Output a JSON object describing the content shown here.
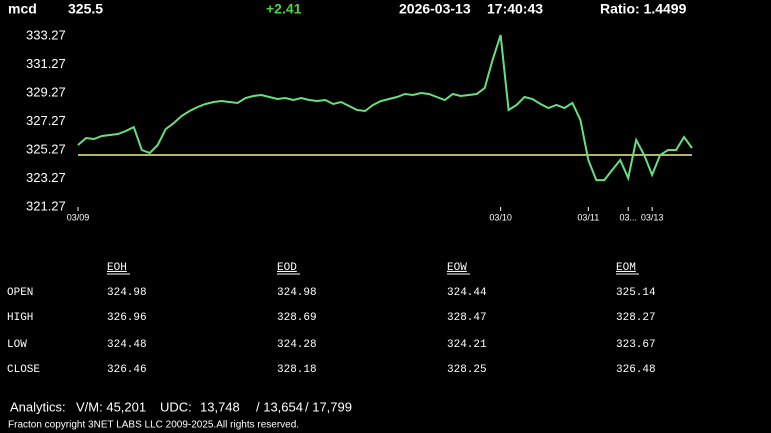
{
  "header": {
    "symbol": "mcd",
    "price": 325.5,
    "change": "+2.41",
    "date": "2026-03-13",
    "time": "17:40:43",
    "ratio": "Ratio: 1.4499"
  },
  "chart_data": {
    "type": "line",
    "categories": [
      "03/09",
      null,
      null,
      null,
      null,
      null,
      null,
      null,
      null,
      null,
      null,
      null,
      null,
      null,
      null,
      null,
      null,
      null,
      null,
      null,
      null,
      null,
      null,
      null,
      null,
      null,
      null,
      null,
      null,
      null,
      null,
      null,
      null,
      null,
      null,
      null,
      null,
      null,
      null,
      null,
      null,
      null,
      null,
      null,
      null,
      null,
      null,
      null,
      null,
      null,
      null,
      null,
      null,
      "03/10",
      null,
      null,
      null,
      null,
      null,
      null,
      null,
      null,
      null,
      null,
      "03/11",
      null,
      null,
      null,
      null,
      "03...",
      null,
      null,
      "03/13",
      null,
      null,
      null,
      null,
      null
    ],
    "values": [
      325.62,
      326.11,
      326.04,
      326.25,
      326.32,
      326.39,
      326.6,
      326.88,
      325.27,
      325.06,
      325.62,
      326.74,
      327.16,
      327.66,
      328.01,
      328.29,
      328.5,
      328.64,
      328.71,
      328.64,
      328.57,
      328.92,
      329.06,
      329.13,
      328.99,
      328.85,
      328.92,
      328.78,
      328.92,
      328.78,
      328.71,
      328.78,
      328.5,
      328.64,
      328.36,
      328.08,
      328.01,
      328.43,
      328.71,
      328.85,
      328.99,
      329.2,
      329.13,
      329.27,
      329.2,
      328.99,
      328.78,
      329.2,
      329.06,
      329.13,
      329.2,
      329.62,
      331.59,
      333.34,
      328.08,
      328.43,
      328.99,
      328.85,
      328.5,
      328.22,
      328.43,
      328.22,
      328.57,
      327.38,
      324.57,
      323.16,
      323.16,
      323.87,
      324.57,
      323.3,
      325.97,
      324.92,
      323.52,
      324.92,
      325.27,
      325.27,
      326.18,
      325.41
    ],
    "color": "#66e07e",
    "reference_value": 324.92,
    "reference_color": "#eef08a",
    "ylim": [
      321.27,
      333.27
    ],
    "yticks": [
      333.27,
      331.27,
      329.27,
      327.27,
      325.27,
      323.27,
      321.27
    ]
  },
  "table": {
    "columns": [
      "EOH",
      "EOD",
      "EOW",
      "EOM"
    ],
    "rows": [
      {
        "label": "OPEN",
        "values": [
          324.98,
          324.98,
          324.44,
          325.14
        ]
      },
      {
        "label": "HIGH",
        "values": [
          326.96,
          328.69,
          328.47,
          328.27
        ]
      },
      {
        "label": "LOW",
        "values": [
          324.48,
          324.28,
          324.21,
          323.67
        ]
      },
      {
        "label": "CLOSE",
        "values": [
          326.46,
          328.18,
          328.25,
          326.48
        ]
      }
    ]
  },
  "footer": {
    "analytics": "Analytics:",
    "vm": "V/M: 45,201",
    "udc": "UDC:",
    "udc_values": [
      "13,748",
      "/ 13,654",
      "/ 17,799"
    ],
    "copyright": "Fracton copyright 3NET LABS LLC 2009-2025.All rights reserved."
  }
}
